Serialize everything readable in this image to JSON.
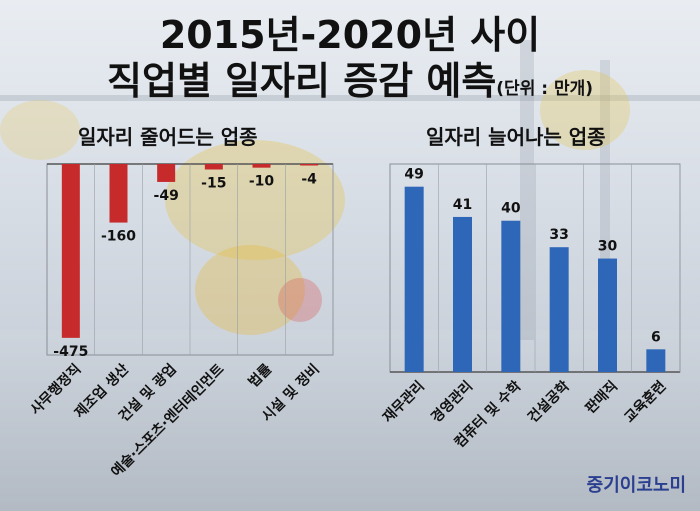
{
  "title": {
    "line1": "2015년-2020년 사이",
    "line2": "직업별 일자리 증감 예측",
    "unit": "(단위 : 만개)"
  },
  "brand": "중기이코노미",
  "colors": {
    "decrease": "#c62a2a",
    "increase": "#2f67b8",
    "background": "#dde2e8"
  },
  "chart_data": [
    {
      "type": "bar",
      "title": "일자리 줄어드는 업종",
      "categories": [
        "사무행정직",
        "제조업 생산",
        "건설 및 광업",
        "예술·스포츠·엔터테인먼트",
        "법률",
        "시설 및 정비"
      ],
      "values": [
        -475,
        -160,
        -49,
        -15,
        -10,
        -4
      ],
      "data_labels": [
        "-475",
        "-160",
        "-49",
        "-15",
        "-10",
        "-4"
      ],
      "ylim": [
        -500,
        0
      ]
    },
    {
      "type": "bar",
      "title": "일자리 늘어나는 업종",
      "categories": [
        "재무관리",
        "경영관리",
        "컴퓨터 및 수학",
        "건설공학",
        "판매직",
        "교육훈련"
      ],
      "values": [
        49,
        41,
        40,
        33,
        30,
        6
      ],
      "data_labels": [
        "49",
        "41",
        "40",
        "33",
        "30",
        "6"
      ],
      "ylim": [
        0,
        55
      ]
    }
  ]
}
